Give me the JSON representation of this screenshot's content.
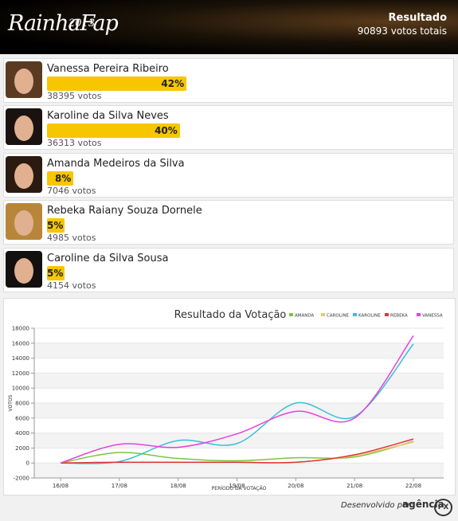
{
  "header": {
    "logo": "RainhaFap",
    "logo_year": "2013",
    "title": "Resultado",
    "total": "90893 votos totais"
  },
  "candidates": [
    {
      "name": "Vanessa Pereira Ribeiro",
      "percent": 42,
      "percent_label": "42%",
      "votes": "38395 votos"
    },
    {
      "name": "Karoline da Silva Neves",
      "percent": 40,
      "percent_label": "40%",
      "votes": "36313 votos"
    },
    {
      "name": "Amanda Medeiros da Silva",
      "percent": 8,
      "percent_label": "8%",
      "votes": "7046 votos"
    },
    {
      "name": "Rebeka Raiany Souza Dornele",
      "percent": 5,
      "percent_label": "5%",
      "votes": "4985 votos"
    },
    {
      "name": "Caroline da Silva Sousa",
      "percent": 5,
      "percent_label": "5%",
      "votes": "4154 votos"
    }
  ],
  "chart_data": {
    "type": "line",
    "title": "Resultado da Votação",
    "x_label": "PERÍODO DA VOTAÇÃO",
    "y_label": "VOTOS",
    "categories": [
      "16/08",
      "17/08",
      "18/08",
      "19/08",
      "20/08",
      "21/08",
      "22/08"
    ],
    "series": [
      {
        "name": "AMANDA",
        "color": "#77c83a",
        "values": [
          0,
          1400,
          600,
          300,
          700,
          800,
          2900
        ]
      },
      {
        "name": "CAROLINE",
        "color": "#f2c46b",
        "values": [
          0,
          100,
          100,
          100,
          100,
          1000,
          2800
        ]
      },
      {
        "name": "KAROLINE",
        "color": "#3bbfd6",
        "values": [
          0,
          200,
          3000,
          2600,
          8000,
          6200,
          15900
        ]
      },
      {
        "name": "REBEKA",
        "color": "#e2333a",
        "values": [
          0,
          100,
          100,
          100,
          100,
          1100,
          3200
        ]
      },
      {
        "name": "VANESSA",
        "color": "#e443e0",
        "values": [
          0,
          2500,
          2100,
          3900,
          6900,
          6000,
          17000
        ]
      }
    ],
    "ylim": [
      -2000,
      18000
    ],
    "yticks": [
      -2000,
      0,
      2000,
      4000,
      6000,
      8000,
      10000,
      12000,
      14000,
      16000,
      18000
    ],
    "grid": true
  },
  "footer": {
    "credit": "Desenvolvido por:",
    "brand": "agência",
    "brand_mark": "PX"
  }
}
